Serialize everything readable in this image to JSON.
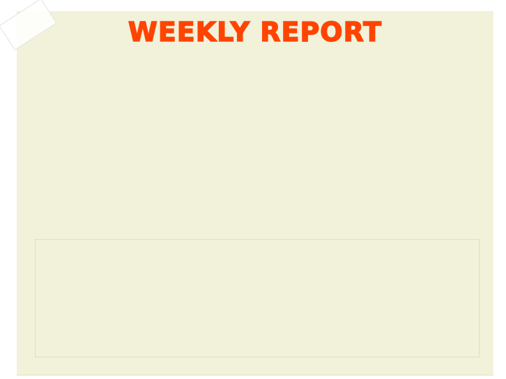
{
  "report": {
    "title": "WEEKLY REPORT"
  },
  "colors": {
    "title": "#ff4400",
    "paper": "#f2f1da",
    "box_border": "#deddc4"
  }
}
